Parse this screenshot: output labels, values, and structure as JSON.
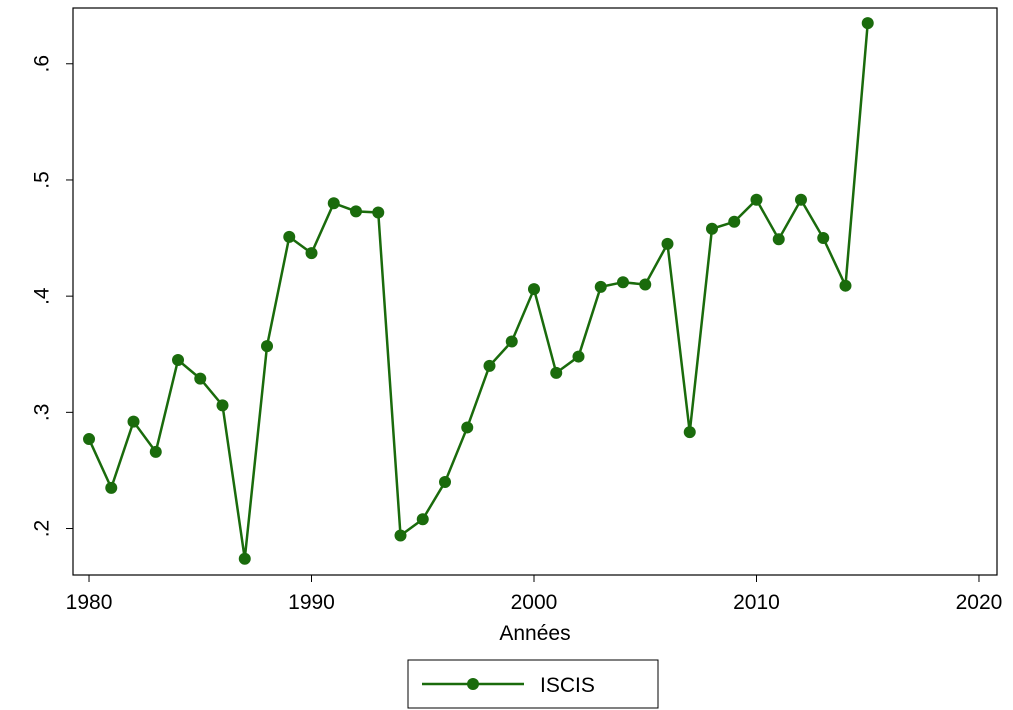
{
  "chart_data": {
    "type": "line",
    "x_label": "Années",
    "x": [
      1980,
      1981,
      1982,
      1983,
      1984,
      1985,
      1986,
      1987,
      1988,
      1989,
      1990,
      1991,
      1992,
      1993,
      1994,
      1995,
      1996,
      1997,
      1998,
      1999,
      2000,
      2001,
      2002,
      2003,
      2004,
      2005,
      2006,
      2007,
      2008,
      2009,
      2010,
      2011,
      2012,
      2013,
      2014,
      2015
    ],
    "series": [
      {
        "name": "ISCIS",
        "color": "#1a6b0c",
        "values": [
          0.277,
          0.235,
          0.292,
          0.266,
          0.345,
          0.329,
          0.306,
          0.174,
          0.357,
          0.451,
          0.437,
          0.48,
          0.473,
          0.472,
          0.194,
          0.208,
          0.24,
          0.287,
          0.34,
          0.361,
          0.406,
          0.334,
          0.348,
          0.408,
          0.412,
          0.41,
          0.445,
          0.283,
          0.458,
          0.464,
          0.483,
          0.449,
          0.483,
          0.45,
          0.409,
          0.635
        ]
      }
    ],
    "xlim": [
      1979.28,
      2020.81
    ],
    "xticks": [
      1980,
      1990,
      2000,
      2010,
      2020
    ],
    "ylim": [
      0.16,
      0.648
    ],
    "yticks": [
      {
        "value": 0.2,
        "label": ".2"
      },
      {
        "value": 0.3,
        "label": ".3"
      },
      {
        "value": 0.4,
        "label": ".4"
      },
      {
        "value": 0.5,
        "label": ".5"
      },
      {
        "value": 0.6,
        "label": ".6"
      }
    ],
    "legend": "bottom",
    "grid": false
  }
}
